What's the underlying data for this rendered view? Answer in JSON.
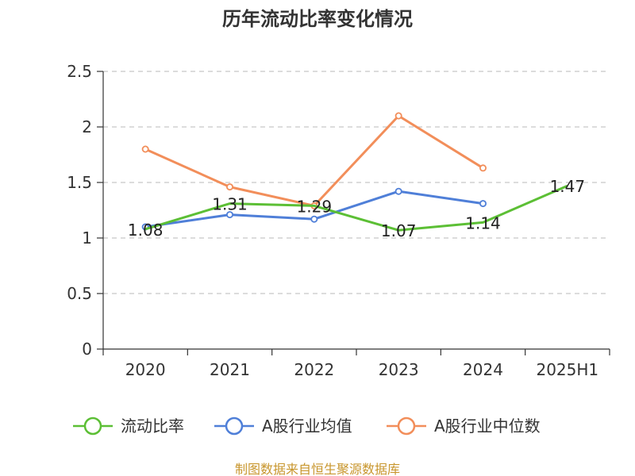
{
  "chart_data": {
    "type": "line",
    "title": "历年流动比率变化情况",
    "categories": [
      "2020",
      "2021",
      "2022",
      "2023",
      "2024",
      "2025H1"
    ],
    "ylim": [
      0,
      2.5
    ],
    "yticks": [
      "0",
      "0.5",
      "1",
      "1.5",
      "2",
      "2.5"
    ],
    "grid": true,
    "series": [
      {
        "name": "流动比率",
        "color": "#5cbf35",
        "values": [
          1.08,
          1.31,
          1.29,
          1.07,
          1.14,
          1.47
        ],
        "labels": [
          "1.08",
          "1.31",
          "1.29",
          "1.07",
          "1.14",
          "1.47"
        ],
        "show_markers": false
      },
      {
        "name": "A股行业均值",
        "color": "#4f7fd8",
        "values": [
          1.1,
          1.21,
          1.17,
          1.42,
          1.31,
          null
        ],
        "show_markers": true
      },
      {
        "name": "A股行业中位数",
        "color": "#f28e5a",
        "values": [
          1.8,
          1.46,
          1.29,
          2.1,
          1.63,
          null
        ],
        "show_markers": true
      }
    ],
    "source": "制图数据来自恒生聚源数据库"
  }
}
